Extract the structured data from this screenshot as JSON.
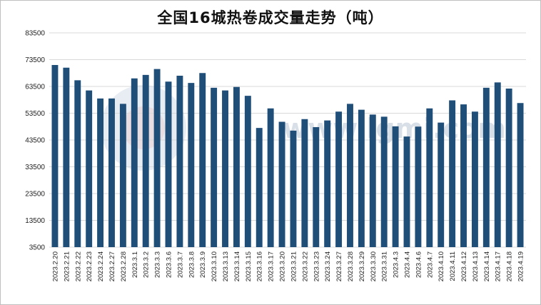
{
  "chart_data": {
    "type": "bar",
    "title": "全国16城热卷成交量走势（吨）",
    "xlabel": "",
    "ylabel": "",
    "ylim": [
      3500,
      83500
    ],
    "yticks": [
      3500,
      13500,
      23500,
      33500,
      43500,
      53500,
      63500,
      73500,
      83500
    ],
    "grid": true,
    "legend": "none",
    "bar_color": "#1f4e79",
    "watermark": "www.lgmi.com",
    "categories": [
      "2023.2.20",
      "2023.2.21",
      "2023.2.22",
      "2023.2.23",
      "2023.2.24",
      "2023.2.27",
      "2023.2.28",
      "2023.3.1",
      "2023.3.2",
      "2023.3.3",
      "2023.3.6",
      "2023.3.7",
      "2023.3.8",
      "2023.3.9",
      "2023.3.10",
      "2023.3.13",
      "2023.3.14",
      "2023.3.15",
      "2023.3.16",
      "2023.3.17",
      "2023.3.20",
      "2023.3.21",
      "2023.3.22",
      "2023.3.23",
      "2023.3.24",
      "2023.3.27",
      "2023.3.28",
      "2023.3.29",
      "2023.3.30",
      "2023.3.31",
      "2023.4.3",
      "2023.4.4",
      "2023.4.6",
      "2023.4.7",
      "2023.4.10",
      "2023.4.11",
      "2023.4.12",
      "2023.4.13",
      "2023.4.14",
      "2023.4.17",
      "2023.4.18",
      "2023.4.19"
    ],
    "values": [
      71500,
      70500,
      65800,
      62000,
      59000,
      59000,
      57000,
      66500,
      67800,
      70000,
      65300,
      67500,
      64800,
      68500,
      63000,
      62000,
      63300,
      60000,
      48000,
      55300,
      50300,
      47000,
      51300,
      48300,
      50800,
      54100,
      57000,
      54800,
      53000,
      52200,
      48600,
      44800,
      48500,
      55300,
      50000,
      58300,
      56800,
      54100,
      63000,
      65000,
      62700,
      57300
    ]
  }
}
